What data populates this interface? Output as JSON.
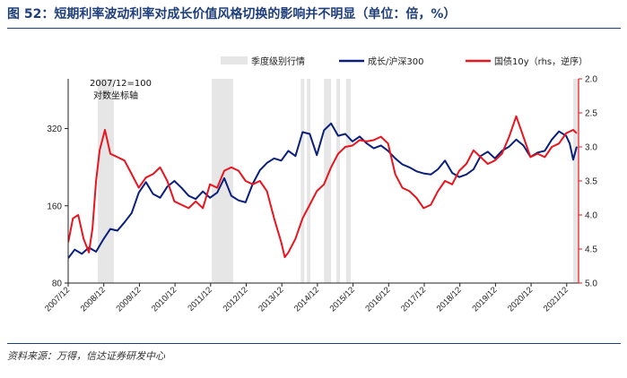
{
  "title": "图 52：短期利率波动利率对成长价值风格切换的影响并不明显（单位：倍，%）",
  "source": "资料来源：万得，信达证券研发中心",
  "colors": {
    "left_series": "#0a1f7a",
    "right_series": "#e8141e",
    "shading": "#e6e6e6",
    "right_axis": "#e8141e",
    "header": "#1f3f7a"
  },
  "chart_data": {
    "type": "line",
    "title": "短期利率波动利率对成长价值风格切换的影响并不明显",
    "left_axis": {
      "scale": "log",
      "range": [
        80,
        500
      ],
      "ticks": [
        80,
        160,
        320
      ],
      "tick_labels": [
        "80",
        "160",
        "320"
      ]
    },
    "right_axis": {
      "scale": "linear",
      "inverted": true,
      "range": [
        2.0,
        5.0
      ],
      "ticks": [
        2.0,
        2.5,
        3.0,
        3.5,
        4.0,
        4.5,
        5.0
      ],
      "tick_labels": [
        "2.0",
        "2.5",
        "3.0",
        "3.5",
        "4.0",
        "4.5",
        "5.0"
      ],
      "color": "#e8141e"
    },
    "x_range": [
      2007.917,
      2022.25
    ],
    "x_ticks": [
      2007.917,
      2008.917,
      2009.917,
      2010.917,
      2011.917,
      2012.917,
      2013.917,
      2014.917,
      2015.917,
      2016.917,
      2017.917,
      2018.917,
      2019.917,
      2020.917,
      2021.917
    ],
    "x_tick_labels": [
      "2007/12",
      "2008/12",
      "2009/12",
      "2010/12",
      "2011/12",
      "2012/12",
      "2013/12",
      "2014/12",
      "2015/12",
      "2016/12",
      "2017/12",
      "2018/12",
      "2019/12",
      "2020/12",
      "2021/12"
    ],
    "legend": [
      "季度级别行情",
      "成长/沪深300",
      "国债10y（rhs，逆序）"
    ],
    "annotation": [
      "2007/12=100",
      "对数坐标轴"
    ],
    "shaded_periods": [
      [
        2008.75,
        2009.2
      ],
      [
        2011.95,
        2012.55
      ],
      [
        2014.45,
        2014.55
      ],
      [
        2014.62,
        2014.72
      ],
      [
        2015.1,
        2015.3
      ],
      [
        2015.45,
        2015.55
      ],
      [
        2015.72,
        2015.85
      ],
      [
        2022.1,
        2022.25
      ]
    ],
    "series": [
      {
        "name": "成长/沪深300",
        "axis": "left",
        "x": [
          2007.92,
          2008.1,
          2008.3,
          2008.5,
          2008.7,
          2008.9,
          2009.1,
          2009.3,
          2009.5,
          2009.7,
          2009.9,
          2010.1,
          2010.3,
          2010.5,
          2010.7,
          2010.9,
          2011.1,
          2011.3,
          2011.5,
          2011.7,
          2011.9,
          2012.1,
          2012.3,
          2012.5,
          2012.7,
          2012.9,
          2013.1,
          2013.3,
          2013.5,
          2013.7,
          2013.9,
          2014.1,
          2014.3,
          2014.5,
          2014.7,
          2014.9,
          2015.1,
          2015.3,
          2015.5,
          2015.7,
          2015.9,
          2016.1,
          2016.3,
          2016.5,
          2016.7,
          2016.9,
          2017.1,
          2017.3,
          2017.5,
          2017.7,
          2017.9,
          2018.1,
          2018.3,
          2018.5,
          2018.7,
          2018.9,
          2019.1,
          2019.3,
          2019.5,
          2019.7,
          2019.9,
          2020.1,
          2020.3,
          2020.5,
          2020.7,
          2020.9,
          2021.1,
          2021.3,
          2021.5,
          2021.7,
          2021.9,
          2022.0,
          2022.1,
          2022.2
        ],
        "values": [
          100,
          108,
          104,
          110,
          106,
          118,
          130,
          128,
          138,
          150,
          180,
          198,
          178,
          172,
          190,
          200,
          188,
          175,
          170,
          182,
          172,
          180,
          205,
          175,
          168,
          165,
          195,
          220,
          235,
          245,
          240,
          262,
          250,
          310,
          305,
          252,
          315,
          335,
          300,
          305,
          285,
          298,
          280,
          268,
          275,
          262,
          245,
          232,
          226,
          218,
          214,
          212,
          222,
          240,
          215,
          207,
          212,
          222,
          250,
          260,
          245,
          262,
          272,
          290,
          275,
          248,
          258,
          262,
          290,
          312,
          300,
          280,
          242,
          272
        ]
      },
      {
        "name": "国债10y（rhs，逆序）",
        "axis": "right",
        "x": [
          2007.92,
          2008.05,
          2008.2,
          2008.35,
          2008.5,
          2008.6,
          2008.7,
          2008.8,
          2008.95,
          2009.1,
          2009.3,
          2009.5,
          2009.7,
          2009.9,
          2010.1,
          2010.3,
          2010.5,
          2010.7,
          2010.9,
          2011.1,
          2011.3,
          2011.5,
          2011.7,
          2011.9,
          2012.1,
          2012.3,
          2012.5,
          2012.7,
          2012.9,
          2013.1,
          2013.3,
          2013.5,
          2013.7,
          2013.9,
          2014.0,
          2014.1,
          2014.3,
          2014.5,
          2014.7,
          2014.9,
          2015.1,
          2015.3,
          2015.5,
          2015.7,
          2015.9,
          2016.1,
          2016.3,
          2016.5,
          2016.7,
          2016.9,
          2017.1,
          2017.3,
          2017.5,
          2017.7,
          2017.9,
          2018.1,
          2018.3,
          2018.5,
          2018.7,
          2018.9,
          2019.1,
          2019.3,
          2019.5,
          2019.7,
          2019.9,
          2020.1,
          2020.3,
          2020.5,
          2020.7,
          2020.9,
          2021.1,
          2021.3,
          2021.5,
          2021.7,
          2021.9,
          2022.1,
          2022.2
        ],
        "values": [
          4.4,
          4.05,
          4.0,
          4.35,
          4.55,
          4.2,
          3.5,
          3.05,
          2.75,
          3.1,
          3.15,
          3.2,
          3.4,
          3.6,
          3.45,
          3.4,
          3.3,
          3.5,
          3.8,
          3.85,
          3.9,
          3.8,
          3.9,
          3.55,
          3.6,
          3.35,
          3.3,
          3.35,
          3.5,
          3.55,
          3.5,
          3.65,
          4.05,
          4.4,
          4.62,
          4.55,
          4.35,
          4.05,
          3.85,
          3.65,
          3.55,
          3.3,
          3.1,
          3.0,
          2.98,
          2.9,
          2.92,
          2.9,
          2.85,
          2.95,
          3.4,
          3.6,
          3.65,
          3.75,
          3.9,
          3.85,
          3.65,
          3.5,
          3.55,
          3.35,
          3.25,
          3.05,
          3.15,
          3.25,
          3.2,
          3.1,
          2.85,
          2.55,
          2.85,
          3.15,
          3.1,
          3.15,
          3.0,
          2.95,
          2.8,
          2.75,
          2.8
        ]
      }
    ]
  }
}
